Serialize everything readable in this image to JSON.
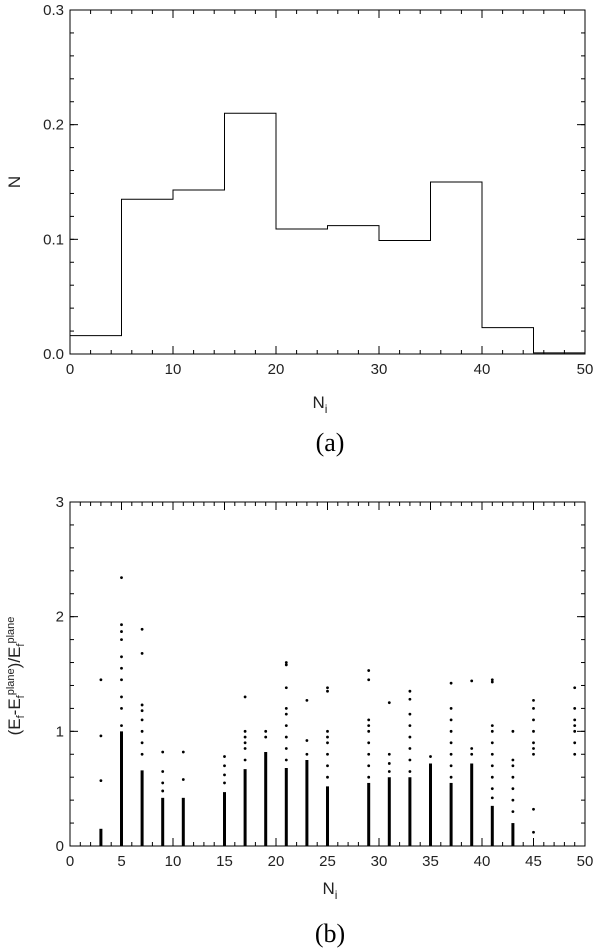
{
  "chart_data": [
    {
      "type": "step",
      "panel_label": "(a)",
      "xlabel": "N",
      "xlabel_sub": "i",
      "ylabel": "N",
      "xlim": [
        0,
        50
      ],
      "ylim": [
        0.0,
        0.3
      ],
      "xticks": [
        0,
        10,
        20,
        30,
        40,
        50
      ],
      "xtick_labels": [
        "0",
        "10",
        "20",
        "30",
        "40",
        "50"
      ],
      "yticks": [
        0.0,
        0.1,
        0.2,
        0.3
      ],
      "ytick_labels": [
        "0.0",
        "0.1",
        "0.2",
        "0.3"
      ],
      "bins": [
        {
          "x0": 0,
          "x1": 5,
          "y": 0.016
        },
        {
          "x0": 5,
          "x1": 10,
          "y": 0.135
        },
        {
          "x0": 10,
          "x1": 15,
          "y": 0.143
        },
        {
          "x0": 15,
          "x1": 20,
          "y": 0.21
        },
        {
          "x0": 20,
          "x1": 25,
          "y": 0.109
        },
        {
          "x0": 25,
          "x1": 30,
          "y": 0.112
        },
        {
          "x0": 30,
          "x1": 35,
          "y": 0.099
        },
        {
          "x0": 35,
          "x1": 40,
          "y": 0.15
        },
        {
          "x0": 40,
          "x1": 45,
          "y": 0.023
        },
        {
          "x0": 45,
          "x1": 50,
          "y": 0.001
        }
      ]
    },
    {
      "type": "scatter",
      "panel_label": "(b)",
      "xlabel": "N",
      "xlabel_sub": "i",
      "ylabel_parts": [
        "(E",
        "f",
        "-E",
        "f",
        "plane",
        ")/E",
        "f",
        "plane"
      ],
      "xlim": [
        0,
        50
      ],
      "ylim": [
        0,
        3
      ],
      "xticks": [
        0,
        5,
        10,
        15,
        20,
        25,
        30,
        35,
        40,
        45,
        50
      ],
      "xtick_labels": [
        "0",
        "5",
        "10",
        "15",
        "20",
        "25",
        "30",
        "35",
        "40",
        "45",
        "50"
      ],
      "yticks": [
        0,
        1,
        2,
        3
      ],
      "ytick_labels": [
        "0",
        "1",
        "2",
        "3"
      ],
      "columns": [
        {
          "x": 3,
          "dense_max": 0.15,
          "outliers": [
            0.57,
            0.96,
            1.45
          ]
        },
        {
          "x": 5,
          "dense_max": 1.0,
          "outliers": [
            1.05,
            1.2,
            1.3,
            1.45,
            1.55,
            1.65,
            1.8,
            1.87,
            1.93,
            2.34
          ]
        },
        {
          "x": 7,
          "dense_max": 0.66,
          "outliers": [
            0.8,
            0.9,
            1.0,
            1.1,
            1.18,
            1.23,
            1.68,
            1.89
          ]
        },
        {
          "x": 9,
          "dense_max": 0.42,
          "outliers": [
            0.48,
            0.55,
            0.65,
            0.82
          ]
        },
        {
          "x": 11,
          "dense_max": 0.42,
          "outliers": [
            0.58,
            0.82
          ]
        },
        {
          "x": 15,
          "dense_max": 0.47,
          "outliers": [
            0.55,
            0.62,
            0.7,
            0.78
          ]
        },
        {
          "x": 17,
          "dense_max": 0.67,
          "outliers": [
            0.75,
            0.85,
            0.9,
            0.95,
            1.0,
            1.3
          ]
        },
        {
          "x": 19,
          "dense_max": 0.82,
          "outliers": [
            0.95,
            1.0
          ]
        },
        {
          "x": 21,
          "dense_max": 0.68,
          "outliers": [
            0.75,
            0.85,
            0.95,
            1.05,
            1.15,
            1.2,
            1.38,
            1.58,
            1.6
          ]
        },
        {
          "x": 23,
          "dense_max": 0.75,
          "outliers": [
            0.8,
            0.92,
            1.27
          ]
        },
        {
          "x": 25,
          "dense_max": 0.52,
          "outliers": [
            0.6,
            0.7,
            0.8,
            0.9,
            0.95,
            1.0,
            1.35,
            1.38
          ]
        },
        {
          "x": 29,
          "dense_max": 0.55,
          "outliers": [
            0.6,
            0.7,
            0.8,
            0.9,
            1.0,
            1.05,
            1.1,
            1.45,
            1.53
          ]
        },
        {
          "x": 31,
          "dense_max": 0.6,
          "outliers": [
            0.65,
            0.72,
            0.8,
            1.25
          ]
        },
        {
          "x": 33,
          "dense_max": 0.6,
          "outliers": [
            0.65,
            0.75,
            0.85,
            0.95,
            1.05,
            1.15,
            1.28,
            1.35
          ]
        },
        {
          "x": 35,
          "dense_max": 0.72,
          "outliers": [
            0.78
          ]
        },
        {
          "x": 37,
          "dense_max": 0.55,
          "outliers": [
            0.6,
            0.7,
            0.8,
            0.9,
            1.0,
            1.1,
            1.2,
            1.42
          ]
        },
        {
          "x": 39,
          "dense_max": 0.72,
          "outliers": [
            0.8,
            0.85,
            1.44
          ]
        },
        {
          "x": 41,
          "dense_max": 0.35,
          "outliers": [
            0.42,
            0.5,
            0.6,
            0.7,
            0.8,
            0.9,
            1.0,
            1.05,
            1.43,
            1.45
          ]
        },
        {
          "x": 43,
          "dense_max": 0.2,
          "outliers": [
            0.3,
            0.4,
            0.5,
            0.6,
            0.7,
            0.75,
            1.0
          ]
        },
        {
          "x": 45,
          "dense_max": 0.0,
          "outliers": [
            0.12,
            0.32,
            0.8,
            0.85,
            0.9,
            1.0,
            1.1,
            1.2,
            1.27
          ]
        },
        {
          "x": 49,
          "dense_max": 0.0,
          "outliers": [
            0.8,
            0.9,
            1.0,
            1.05,
            1.1,
            1.2,
            1.38
          ]
        }
      ]
    }
  ]
}
